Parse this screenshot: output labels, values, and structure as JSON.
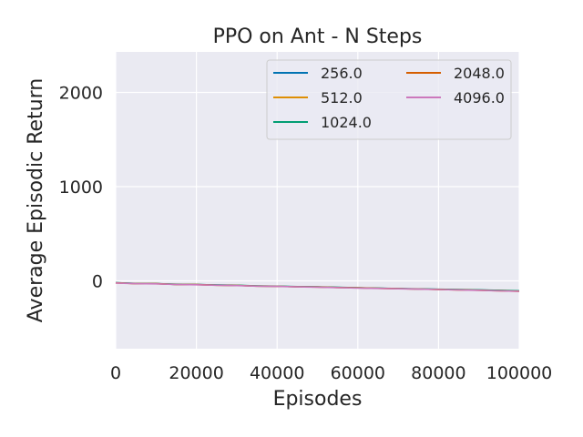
{
  "chart_data": {
    "type": "line",
    "title": "PPO on Ant - N Steps",
    "xlabel": "Episodes",
    "ylabel": "Average Episodic Return",
    "xlim": [
      0,
      100000
    ],
    "ylim": [
      -720,
      2430
    ],
    "xticks": [
      0,
      20000,
      40000,
      60000,
      80000,
      100000
    ],
    "xtick_labels": [
      "0",
      "20000",
      "40000",
      "60000",
      "80000",
      "100000"
    ],
    "yticks": [
      0,
      1000,
      2000
    ],
    "ytick_labels": [
      "0",
      "1000",
      "2000"
    ],
    "grid": true,
    "legend_position": "top-right",
    "legend_columns": 2,
    "series": [
      {
        "name": "256.0",
        "color": "#0173b2",
        "x": [
          0,
          5000,
          10000,
          15000,
          20000,
          25000,
          30000,
          35000,
          40000,
          45000,
          50000,
          55000,
          60000,
          65000,
          70000,
          75000,
          80000,
          85000,
          90000,
          95000,
          100000
        ],
        "y": [
          -20,
          -28,
          -30,
          -38,
          -40,
          -45,
          -48,
          -55,
          -58,
          -62,
          -65,
          -70,
          -75,
          -78,
          -82,
          -86,
          -90,
          -94,
          -98,
          -103,
          -108
        ]
      },
      {
        "name": "512.0",
        "color": "#de8f05",
        "x": [
          0,
          5000,
          10000,
          15000,
          20000,
          25000,
          30000,
          35000,
          40000,
          45000,
          50000,
          55000,
          60000,
          65000,
          70000,
          75000,
          80000,
          85000,
          90000,
          95000,
          100000
        ],
        "y": [
          -22,
          -29,
          -31,
          -37,
          -41,
          -46,
          -49,
          -54,
          -57,
          -63,
          -66,
          -71,
          -74,
          -79,
          -83,
          -87,
          -91,
          -95,
          -99,
          -104,
          -109
        ]
      },
      {
        "name": "1024.0",
        "color": "#029e73",
        "x": [
          0,
          5000,
          10000,
          15000,
          20000,
          25000,
          30000,
          35000,
          40000,
          45000,
          50000,
          55000,
          60000,
          65000,
          70000,
          75000,
          80000,
          85000,
          90000,
          95000,
          100000
        ],
        "y": [
          -19,
          -27,
          -29,
          -36,
          -39,
          -44,
          -47,
          -53,
          -56,
          -61,
          -64,
          -69,
          -73,
          -77,
          -81,
          -85,
          -89,
          -92,
          -96,
          -101,
          -105
        ]
      },
      {
        "name": "2048.0",
        "color": "#d55e00",
        "x": [
          0,
          5000,
          10000,
          15000,
          20000,
          25000,
          30000,
          35000,
          40000,
          45000,
          50000,
          55000,
          60000,
          65000,
          70000,
          75000,
          80000,
          85000,
          90000,
          95000,
          100000
        ],
        "y": [
          -21,
          -30,
          -30,
          -39,
          -40,
          -47,
          -48,
          -56,
          -58,
          -63,
          -65,
          -71,
          -75,
          -79,
          -83,
          -87,
          -91,
          -96,
          -100,
          -105,
          -110
        ]
      },
      {
        "name": "4096.0",
        "color": "#cc78bc",
        "x": [
          0,
          5000,
          10000,
          15000,
          20000,
          25000,
          30000,
          35000,
          40000,
          45000,
          50000,
          55000,
          60000,
          65000,
          70000,
          75000,
          80000,
          85000,
          90000,
          95000,
          100000
        ],
        "y": [
          -23,
          -30,
          -32,
          -39,
          -42,
          -47,
          -50,
          -56,
          -59,
          -64,
          -67,
          -72,
          -76,
          -80,
          -84,
          -88,
          -92,
          -97,
          -101,
          -106,
          -111
        ]
      }
    ]
  }
}
